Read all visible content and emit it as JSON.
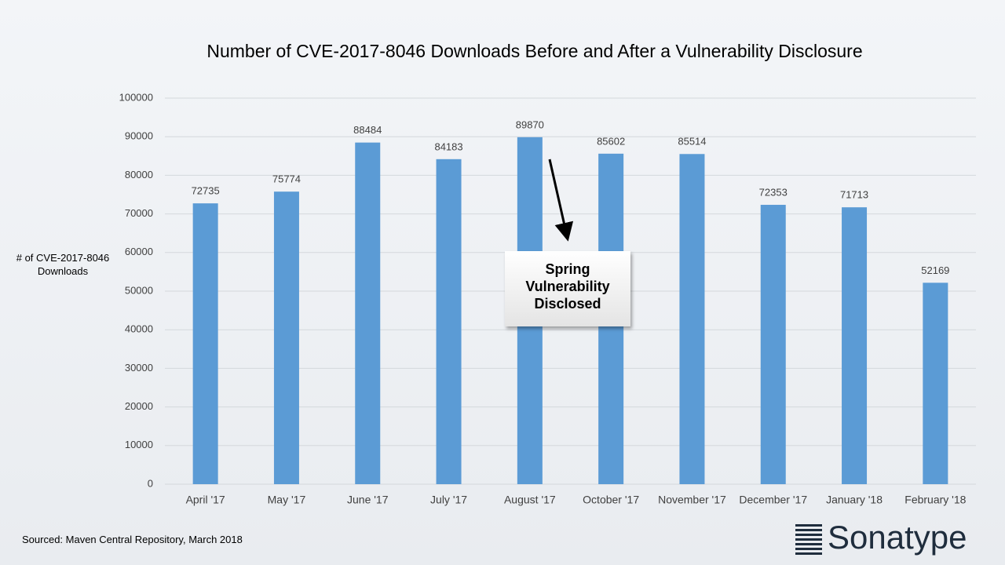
{
  "chart_data": {
    "type": "bar",
    "title": "Number of CVE-2017-8046 Downloads Before and After a Vulnerability Disclosure",
    "y_label": "# of CVE-2017-8046 Downloads",
    "categories": [
      "April '17",
      "May '17",
      "June '17",
      "July '17",
      "August '17",
      "October '17",
      "November '17",
      "December '17",
      "January '18",
      "February '18"
    ],
    "values": [
      72735,
      75774,
      88484,
      84183,
      89870,
      85602,
      85514,
      72353,
      71713,
      52169
    ],
    "color": "#5b9bd5",
    "ylim": [
      0,
      100000
    ],
    "yticks": [
      0,
      10000,
      20000,
      30000,
      40000,
      50000,
      60000,
      70000,
      80000,
      90000,
      100000
    ],
    "grid": true,
    "annotation": "Spring Vulnerability Disclosed",
    "source": "Sourced: Maven Central Repository, March 2018",
    "logo": "Sonatype"
  }
}
